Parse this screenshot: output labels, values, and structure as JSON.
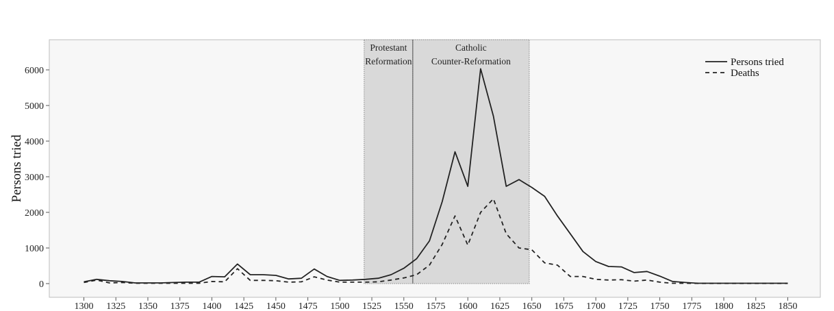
{
  "chart_data": {
    "type": "line",
    "title": "",
    "xlabel": "",
    "ylabel": "Persons tried",
    "xlim": [
      1300,
      1850
    ],
    "ylim": [
      0,
      6500
    ],
    "xticks": [
      "1300",
      "1325",
      "1350",
      "1375",
      "1400",
      "1425",
      "1450",
      "1475",
      "1500",
      "1525",
      "1550",
      "1575",
      "1600",
      "1625",
      "1650",
      "1675",
      "1700",
      "1725",
      "1750",
      "1775",
      "1800",
      "1825",
      "1850"
    ],
    "yticks": [
      "0",
      "1000",
      "2000",
      "3000",
      "4000",
      "5000",
      "6000"
    ],
    "grid": false,
    "legend_position": "top-right",
    "x": [
      1300,
      1310,
      1320,
      1330,
      1340,
      1350,
      1360,
      1370,
      1380,
      1390,
      1400,
      1410,
      1420,
      1430,
      1440,
      1450,
      1460,
      1470,
      1480,
      1490,
      1500,
      1510,
      1520,
      1530,
      1540,
      1550,
      1560,
      1570,
      1580,
      1590,
      1600,
      1610,
      1620,
      1630,
      1640,
      1650,
      1660,
      1670,
      1680,
      1690,
      1700,
      1710,
      1720,
      1730,
      1740,
      1750,
      1760,
      1770,
      1780,
      1790,
      1800,
      1810,
      1820,
      1830,
      1840,
      1850
    ],
    "series": [
      {
        "name": "Persons tried",
        "style": "solid",
        "values": [
          50,
          120,
          80,
          60,
          20,
          20,
          20,
          30,
          40,
          40,
          200,
          190,
          550,
          250,
          250,
          230,
          130,
          150,
          410,
          200,
          90,
          100,
          120,
          150,
          250,
          430,
          700,
          1200,
          2300,
          3700,
          2730,
          6030,
          4700,
          2730,
          2920,
          2700,
          2450,
          1900,
          1400,
          900,
          620,
          480,
          470,
          310,
          340,
          210,
          60,
          30,
          10,
          10,
          10,
          10,
          10,
          10,
          10,
          10
        ]
      },
      {
        "name": "Deaths",
        "style": "dashed",
        "values": [
          30,
          100,
          20,
          30,
          10,
          10,
          10,
          10,
          10,
          10,
          60,
          50,
          420,
          90,
          90,
          80,
          40,
          50,
          190,
          100,
          40,
          40,
          40,
          50,
          100,
          160,
          250,
          520,
          1100,
          1900,
          1080,
          2000,
          2380,
          1400,
          1000,
          950,
          580,
          520,
          200,
          200,
          120,
          100,
          110,
          70,
          100,
          40,
          10,
          10,
          5,
          5,
          5,
          5,
          5,
          5,
          5,
          5
        ]
      }
    ],
    "annotations": [
      {
        "x_start": 1519,
        "x_end": 1557,
        "lines": [
          "Protestant",
          "Reformation"
        ]
      },
      {
        "x_start": 1557,
        "x_end": 1648,
        "lines": [
          "Catholic",
          "Counter-Reformation"
        ]
      }
    ]
  }
}
